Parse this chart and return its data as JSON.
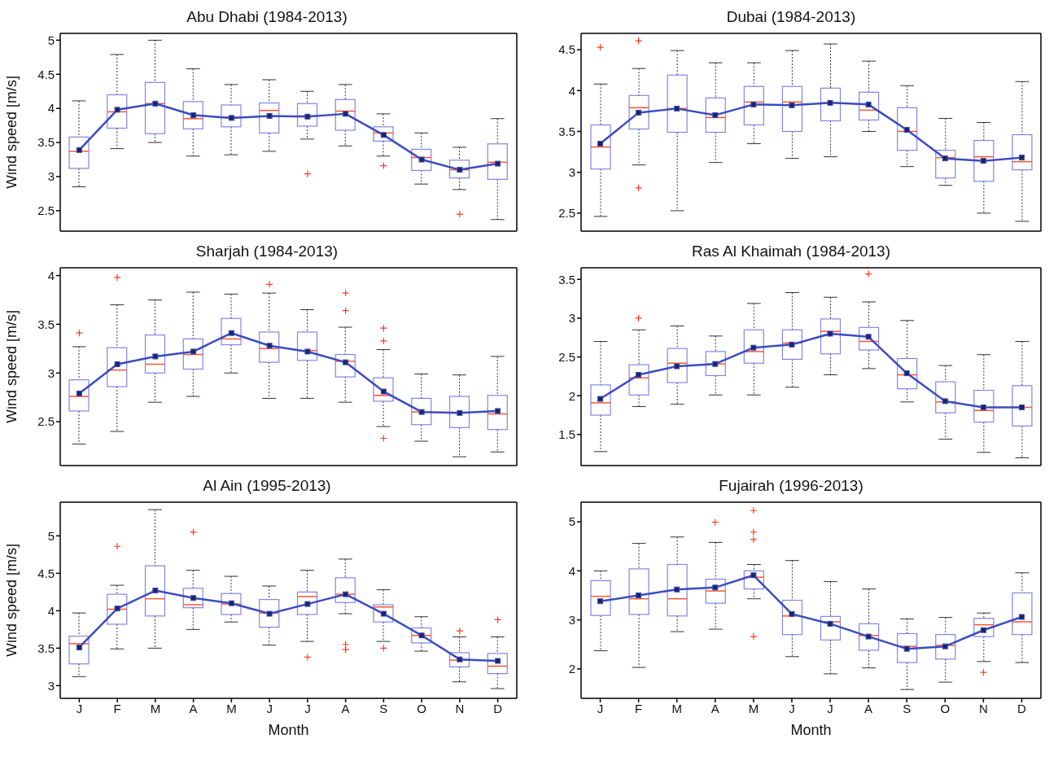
{
  "chart_data": [
    {
      "type": "box",
      "title": "Abu Dhabi (1984-2013)",
      "ylabel": "Wind speed [m/s]",
      "categories": [
        null,
        null,
        null,
        null,
        null,
        null,
        null,
        null,
        null,
        null,
        null,
        null
      ],
      "color": "#7f86e6",
      "ylim": [
        2.2,
        5.1
      ],
      "yticks": [
        2.5,
        3,
        3.5,
        4,
        4.5,
        5
      ],
      "marker": "square",
      "boxes": [
        {
          "low": 2.85,
          "q1": 3.12,
          "median": 3.37,
          "q3": 3.58,
          "high": 4.11
        },
        {
          "low": 3.41,
          "q1": 3.71,
          "median": 3.95,
          "q3": 4.2,
          "high": 4.79
        },
        {
          "low": 3.5,
          "q1": 3.63,
          "median": 4.07,
          "q3": 4.38,
          "high": 5.0
        },
        {
          "low": 3.3,
          "q1": 3.7,
          "median": 3.85,
          "q3": 4.1,
          "high": 4.58
        },
        {
          "low": 3.32,
          "q1": 3.73,
          "median": 3.87,
          "q3": 4.05,
          "high": 4.35
        },
        {
          "low": 3.37,
          "q1": 3.64,
          "median": 3.97,
          "q3": 4.08,
          "high": 4.42
        },
        {
          "low": 3.55,
          "q1": 3.74,
          "median": 3.89,
          "q3": 4.07,
          "high": 4.25,
          "outliers": [
            3.04
          ]
        },
        {
          "low": 3.45,
          "q1": 3.68,
          "median": 3.96,
          "q3": 4.13,
          "high": 4.35
        },
        {
          "low": 3.3,
          "q1": 3.52,
          "median": 3.64,
          "q3": 3.73,
          "high": 3.92,
          "outliers": [
            3.16
          ]
        },
        {
          "low": 2.89,
          "q1": 3.09,
          "median": 3.28,
          "q3": 3.4,
          "high": 3.64
        },
        {
          "low": 2.81,
          "q1": 2.98,
          "median": 3.1,
          "q3": 3.24,
          "high": 3.43,
          "outliers": [
            2.45
          ]
        },
        {
          "low": 2.37,
          "q1": 2.96,
          "median": 3.21,
          "q3": 3.48,
          "high": 3.85
        }
      ],
      "series": [
        {
          "type": "line",
          "color": "#3b4cc0",
          "values": [
            3.39,
            3.98,
            4.07,
            3.9,
            3.86,
            3.89,
            3.88,
            3.92,
            3.61,
            3.25,
            3.1,
            3.19
          ]
        }
      ]
    },
    {
      "type": "box",
      "title": "Dubai (1984-2013)",
      "categories": [
        null,
        null,
        null,
        null,
        null,
        null,
        null,
        null,
        null,
        null,
        null,
        null
      ],
      "color": "#7f86e6",
      "ylim": [
        2.28,
        4.7
      ],
      "yticks": [
        2.5,
        3,
        3.5,
        4,
        4.5
      ],
      "marker": "square",
      "boxes": [
        {
          "low": 2.46,
          "q1": 3.04,
          "median": 3.31,
          "q3": 3.58,
          "high": 4.08,
          "outliers": [
            4.53
          ]
        },
        {
          "low": 3.09,
          "q1": 3.53,
          "median": 3.79,
          "q3": 3.94,
          "high": 4.27,
          "outliers": [
            4.61,
            2.81
          ]
        },
        {
          "low": 2.53,
          "q1": 3.49,
          "median": 3.78,
          "q3": 4.19,
          "high": 4.49
        },
        {
          "low": 3.12,
          "q1": 3.49,
          "median": 3.67,
          "q3": 3.91,
          "high": 4.34
        },
        {
          "low": 3.35,
          "q1": 3.58,
          "median": 3.86,
          "q3": 4.05,
          "high": 4.34
        },
        {
          "low": 3.17,
          "q1": 3.5,
          "median": 3.86,
          "q3": 4.05,
          "high": 4.49
        },
        {
          "low": 3.19,
          "q1": 3.63,
          "median": 3.85,
          "q3": 4.03,
          "high": 4.57
        },
        {
          "low": 3.5,
          "q1": 3.64,
          "median": 3.76,
          "q3": 3.98,
          "high": 4.36
        },
        {
          "low": 3.07,
          "q1": 3.27,
          "median": 3.5,
          "q3": 3.79,
          "high": 4.06
        },
        {
          "low": 2.84,
          "q1": 2.93,
          "median": 3.18,
          "q3": 3.27,
          "high": 3.66
        },
        {
          "low": 2.5,
          "q1": 2.89,
          "median": 3.19,
          "q3": 3.39,
          "high": 3.61
        },
        {
          "low": 2.4,
          "q1": 3.03,
          "median": 3.13,
          "q3": 3.46,
          "high": 4.11
        }
      ],
      "series": [
        {
          "type": "line",
          "color": "#3b4cc0",
          "values": [
            3.35,
            3.73,
            3.78,
            3.7,
            3.83,
            3.82,
            3.85,
            3.83,
            3.52,
            3.17,
            3.14,
            3.18
          ]
        }
      ]
    },
    {
      "type": "box",
      "title": "Sharjah (1984-2013)",
      "ylabel": "Wind speed [m/s]",
      "categories": [
        null,
        null,
        null,
        null,
        null,
        null,
        null,
        null,
        null,
        null,
        null,
        null
      ],
      "color": "#7f86e6",
      "ylim": [
        2.05,
        4.08
      ],
      "yticks": [
        2.5,
        3,
        3.5,
        4
      ],
      "marker": "square",
      "boxes": [
        {
          "low": 2.27,
          "q1": 2.61,
          "median": 2.76,
          "q3": 2.93,
          "high": 3.27,
          "outliers": [
            3.41
          ]
        },
        {
          "low": 2.4,
          "q1": 2.86,
          "median": 3.03,
          "q3": 3.26,
          "high": 3.7,
          "outliers": [
            3.98
          ]
        },
        {
          "low": 2.7,
          "q1": 3.0,
          "median": 3.09,
          "q3": 3.39,
          "high": 3.75
        },
        {
          "low": 2.76,
          "q1": 3.04,
          "median": 3.19,
          "q3": 3.35,
          "high": 3.83
        },
        {
          "low": 3.0,
          "q1": 3.29,
          "median": 3.35,
          "q3": 3.56,
          "high": 3.81
        },
        {
          "low": 2.74,
          "q1": 3.11,
          "median": 3.25,
          "q3": 3.42,
          "high": 3.82,
          "outliers": [
            3.91
          ]
        },
        {
          "low": 2.74,
          "q1": 3.13,
          "median": 3.23,
          "q3": 3.42,
          "high": 3.65
        },
        {
          "low": 2.7,
          "q1": 2.96,
          "median": 3.12,
          "q3": 3.19,
          "high": 3.47,
          "outliers": [
            3.82,
            3.64
          ]
        },
        {
          "low": 2.45,
          "q1": 2.71,
          "median": 2.77,
          "q3": 2.95,
          "high": 3.24,
          "outliers": [
            3.46,
            3.33,
            2.33
          ]
        },
        {
          "low": 2.3,
          "q1": 2.47,
          "median": 2.6,
          "q3": 2.74,
          "high": 2.99
        },
        {
          "low": 2.14,
          "q1": 2.44,
          "median": 2.59,
          "q3": 2.76,
          "high": 2.98
        },
        {
          "low": 2.19,
          "q1": 2.42,
          "median": 2.58,
          "q3": 2.77,
          "high": 3.17
        }
      ],
      "series": [
        {
          "type": "line",
          "color": "#3b4cc0",
          "values": [
            2.79,
            3.09,
            3.17,
            3.22,
            3.41,
            3.28,
            3.22,
            3.11,
            2.81,
            2.6,
            2.59,
            2.61
          ]
        }
      ]
    },
    {
      "type": "box",
      "title": "Ras Al Khaimah (1984-2013)",
      "categories": [
        null,
        null,
        null,
        null,
        null,
        null,
        null,
        null,
        null,
        null,
        null,
        null
      ],
      "color": "#7f86e6",
      "ylim": [
        1.1,
        3.65
      ],
      "yticks": [
        1.5,
        2,
        2.5,
        3,
        3.5
      ],
      "marker": "square",
      "boxes": [
        {
          "low": 1.28,
          "q1": 1.75,
          "median": 1.91,
          "q3": 2.14,
          "high": 2.7
        },
        {
          "low": 1.86,
          "q1": 2.01,
          "median": 2.23,
          "q3": 2.4,
          "high": 2.85,
          "outliers": [
            3.0
          ]
        },
        {
          "low": 1.89,
          "q1": 2.17,
          "median": 2.42,
          "q3": 2.61,
          "high": 2.9
        },
        {
          "low": 2.01,
          "q1": 2.26,
          "median": 2.41,
          "q3": 2.57,
          "high": 2.77
        },
        {
          "low": 2.01,
          "q1": 2.42,
          "median": 2.57,
          "q3": 2.85,
          "high": 3.19
        },
        {
          "low": 2.11,
          "q1": 2.47,
          "median": 2.68,
          "q3": 2.85,
          "high": 3.33
        },
        {
          "low": 2.27,
          "q1": 2.54,
          "median": 2.83,
          "q3": 2.99,
          "high": 3.27
        },
        {
          "low": 2.35,
          "q1": 2.59,
          "median": 2.7,
          "q3": 2.88,
          "high": 3.21,
          "outliers": [
            3.57
          ]
        },
        {
          "low": 1.92,
          "q1": 2.09,
          "median": 2.27,
          "q3": 2.48,
          "high": 2.97
        },
        {
          "low": 1.44,
          "q1": 1.78,
          "median": 1.92,
          "q3": 2.18,
          "high": 2.39
        },
        {
          "low": 1.27,
          "q1": 1.66,
          "median": 1.81,
          "q3": 2.07,
          "high": 2.53
        },
        {
          "low": 1.2,
          "q1": 1.61,
          "median": 1.85,
          "q3": 2.13,
          "high": 2.7
        }
      ],
      "series": [
        {
          "type": "line",
          "color": "#3b4cc0",
          "values": [
            1.96,
            2.27,
            2.38,
            2.41,
            2.62,
            2.66,
            2.8,
            2.76,
            2.29,
            1.93,
            1.85,
            1.85
          ]
        }
      ]
    },
    {
      "type": "box",
      "title": "Al Ain (1995-2013)",
      "xlabel": "Month",
      "ylabel": "Wind speed [m/s]",
      "categories": [
        "J",
        "F",
        "M",
        "A",
        "M",
        "J",
        "J",
        "A",
        "S",
        "O",
        "N",
        "D"
      ],
      "color": "#7f86e6",
      "ylim": [
        2.83,
        5.45
      ],
      "yticks": [
        3,
        3.5,
        4,
        4.5,
        5
      ],
      "marker": "square",
      "boxes": [
        {
          "low": 3.12,
          "q1": 3.29,
          "median": 3.56,
          "q3": 3.66,
          "high": 3.97
        },
        {
          "low": 3.49,
          "q1": 3.82,
          "median": 4.02,
          "q3": 4.22,
          "high": 4.34,
          "outliers": [
            4.86
          ]
        },
        {
          "low": 3.5,
          "q1": 3.93,
          "median": 4.16,
          "q3": 4.6,
          "high": 5.35
        },
        {
          "low": 3.75,
          "q1": 4.04,
          "median": 4.08,
          "q3": 4.3,
          "high": 4.54,
          "outliers": [
            5.05
          ]
        },
        {
          "low": 3.85,
          "q1": 3.95,
          "median": 4.09,
          "q3": 4.23,
          "high": 4.46
        },
        {
          "low": 3.54,
          "q1": 3.78,
          "median": 3.97,
          "q3": 4.15,
          "high": 4.33
        },
        {
          "low": 3.59,
          "q1": 3.95,
          "median": 4.19,
          "q3": 4.25,
          "high": 4.54,
          "outliers": [
            3.38
          ]
        },
        {
          "low": 3.96,
          "q1": 4.11,
          "median": 4.22,
          "q3": 4.44,
          "high": 4.69,
          "outliers": [
            3.55,
            3.48
          ]
        },
        {
          "low": 3.59,
          "q1": 3.85,
          "median": 4.05,
          "q3": 4.08,
          "high": 4.28,
          "outliers": [
            3.5
          ]
        },
        {
          "low": 3.46,
          "q1": 3.57,
          "median": 3.67,
          "q3": 3.77,
          "high": 3.92
        },
        {
          "low": 3.05,
          "q1": 3.25,
          "median": 3.34,
          "q3": 3.44,
          "high": 3.65,
          "outliers": [
            3.73
          ]
        },
        {
          "low": 2.96,
          "q1": 3.16,
          "median": 3.26,
          "q3": 3.43,
          "high": 3.65,
          "outliers": [
            3.88
          ]
        }
      ],
      "series": [
        {
          "type": "line",
          "color": "#3b4cc0",
          "values": [
            3.51,
            4.03,
            4.27,
            4.17,
            4.1,
            3.96,
            4.09,
            4.22,
            3.96,
            3.67,
            3.35,
            3.33
          ]
        }
      ]
    },
    {
      "type": "box",
      "title": "Fujairah (1996-2013)",
      "xlabel": "Month",
      "categories": [
        "J",
        "F",
        "M",
        "A",
        "M",
        "J",
        "J",
        "A",
        "S",
        "O",
        "N",
        "D"
      ],
      "color": "#7f86e6",
      "ylim": [
        1.4,
        5.4
      ],
      "yticks": [
        2,
        3,
        4,
        5
      ],
      "marker": "square",
      "boxes": [
        {
          "low": 2.37,
          "q1": 3.09,
          "median": 3.48,
          "q3": 3.8,
          "high": 4.0
        },
        {
          "low": 2.03,
          "q1": 3.11,
          "median": 3.43,
          "q3": 4.04,
          "high": 4.56
        },
        {
          "low": 2.76,
          "q1": 3.08,
          "median": 3.43,
          "q3": 4.13,
          "high": 4.69
        },
        {
          "low": 2.81,
          "q1": 3.34,
          "median": 3.59,
          "q3": 3.83,
          "high": 4.58,
          "outliers": [
            4.99
          ]
        },
        {
          "low": 3.43,
          "q1": 3.63,
          "median": 3.87,
          "q3": 4.0,
          "high": 4.13,
          "outliers": [
            5.23,
            4.79,
            4.64,
            2.66
          ]
        },
        {
          "low": 2.25,
          "q1": 2.7,
          "median": 3.08,
          "q3": 3.4,
          "high": 4.21
        },
        {
          "low": 1.9,
          "q1": 2.59,
          "median": 2.96,
          "q3": 3.07,
          "high": 3.78
        },
        {
          "low": 2.02,
          "q1": 2.38,
          "median": 2.68,
          "q3": 2.92,
          "high": 3.63
        },
        {
          "low": 1.58,
          "q1": 2.13,
          "median": 2.46,
          "q3": 2.72,
          "high": 3.02
        },
        {
          "low": 1.73,
          "q1": 2.2,
          "median": 2.48,
          "q3": 2.7,
          "high": 3.05
        },
        {
          "low": 2.15,
          "q1": 2.66,
          "median": 2.9,
          "q3": 3.03,
          "high": 3.14,
          "outliers": [
            1.93
          ]
        },
        {
          "low": 2.13,
          "q1": 2.7,
          "median": 2.96,
          "q3": 3.55,
          "high": 3.96
        }
      ],
      "series": [
        {
          "type": "line",
          "color": "#3b4cc0",
          "values": [
            3.38,
            3.5,
            3.62,
            3.66,
            3.91,
            3.12,
            2.92,
            2.66,
            2.41,
            2.46,
            2.79,
            3.06
          ]
        }
      ]
    }
  ]
}
